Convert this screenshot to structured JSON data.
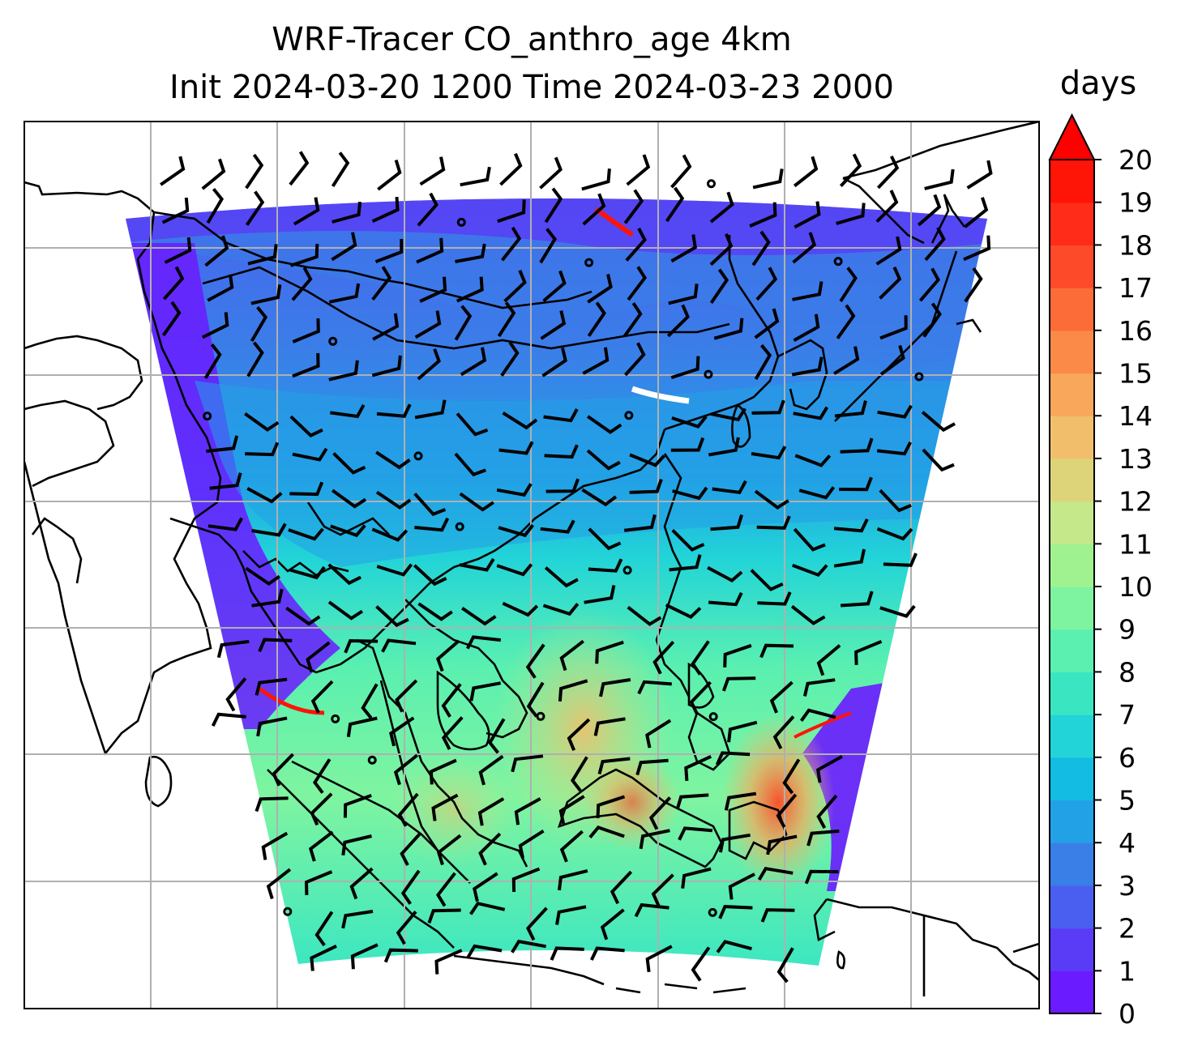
{
  "title_line1": "WRF-Tracer CO_anthro_age 4km",
  "title_line2": "Init 2024-03-20 1200 Time 2024-03-23 2000",
  "chart_data": {
    "type": "heatmap",
    "title": "WRF-Tracer CO_anthro_age 4km",
    "subtitle": "Init 2024-03-20 1200 Time 2024-03-23 2000",
    "colorbar": {
      "label": "days",
      "min": 0,
      "max": 20,
      "ticks": [
        0,
        1,
        2,
        3,
        4,
        5,
        6,
        7,
        8,
        9,
        10,
        11,
        12,
        13,
        14,
        15,
        16,
        17,
        18,
        19,
        20
      ],
      "extend": "max",
      "colors": [
        "#6a1bff",
        "#5a3cf6",
        "#4a5ff0",
        "#3a7ee8",
        "#23a1e6",
        "#12bce2",
        "#22d4d8",
        "#3ae6c2",
        "#5bf0b0",
        "#7ff4a0",
        "#a0f290",
        "#c4e88a",
        "#ddd47a",
        "#f1bf6c",
        "#f9a75a",
        "#fb8a48",
        "#fc6c38",
        "#fd4a28",
        "#fe2c18",
        "#ff1408"
      ],
      "extend_color": "#ff0000"
    },
    "map": {
      "gridlines": true,
      "coastlines": true,
      "wind_barbs": true
    }
  }
}
